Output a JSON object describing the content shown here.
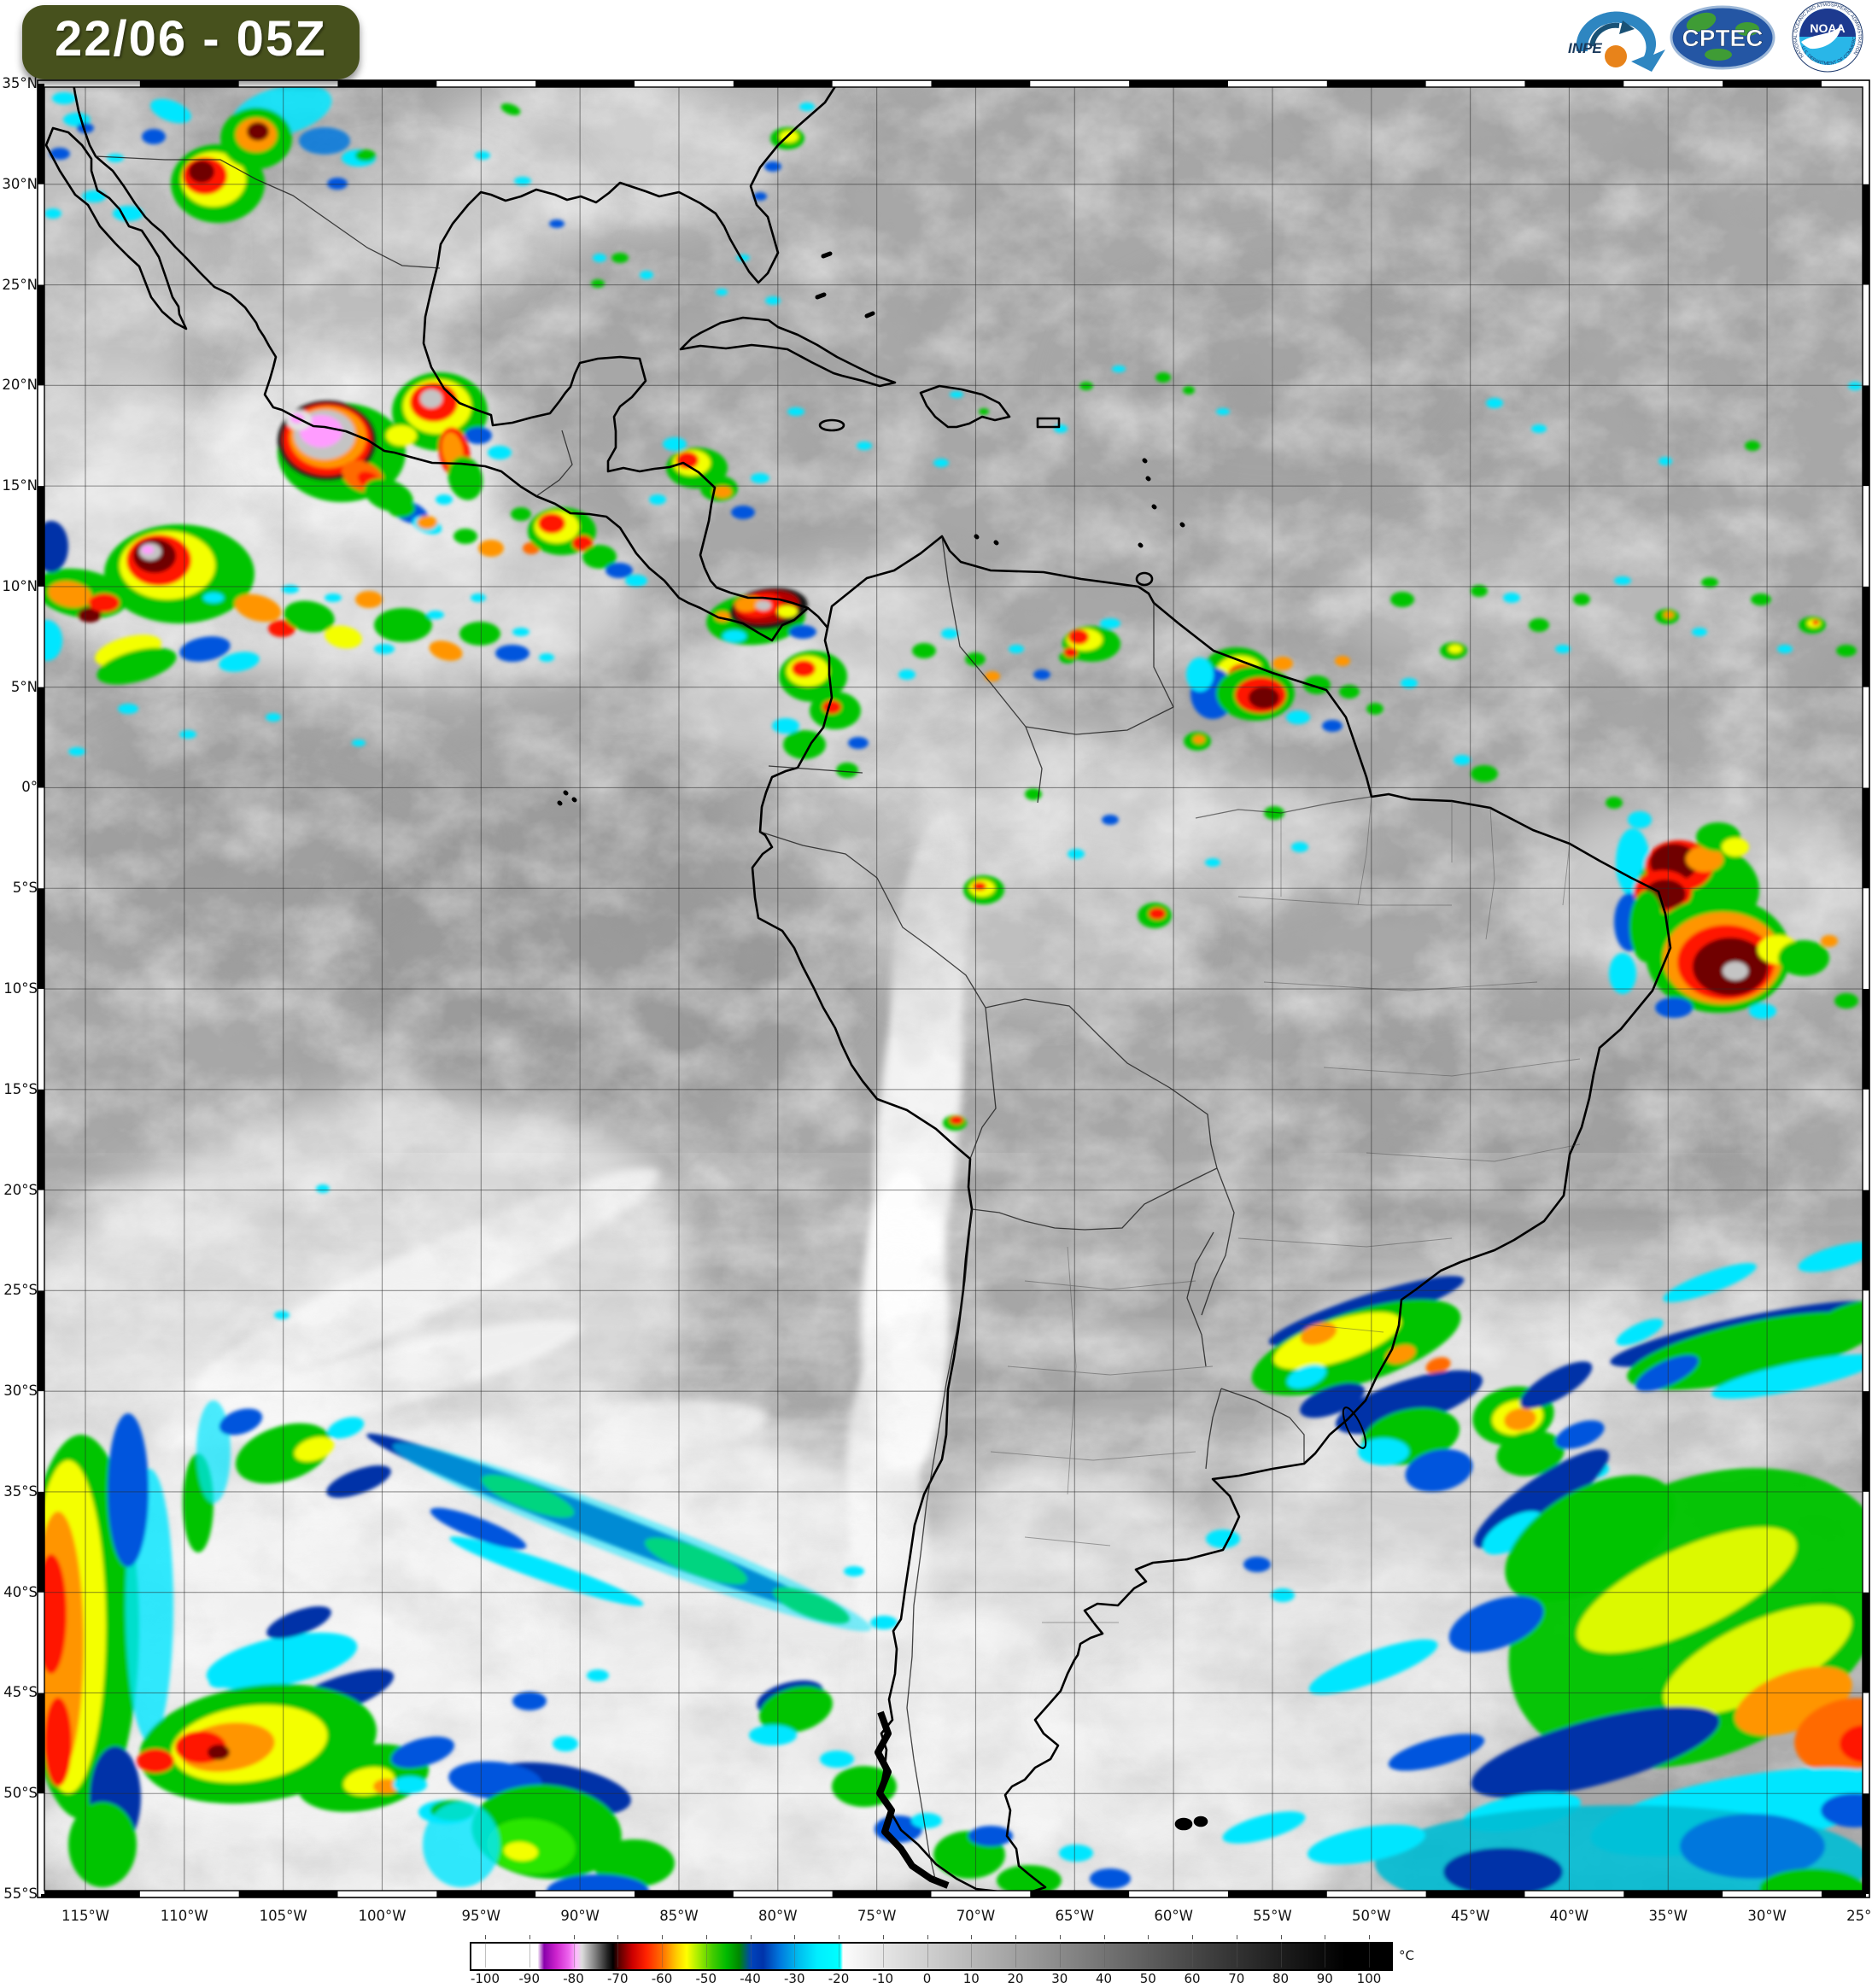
{
  "header": {
    "timestamp": "22/06 - 05Z"
  },
  "logos": {
    "inpe_label": "INPE",
    "cptec_label": "CPTEC",
    "noaa_label": "NOAA",
    "noaa_ring_top": "NATIONAL OCEANIC AND ATMOSPHERIC ADMINISTRATION",
    "noaa_ring_bottom": "U.S. DEPARTMENT OF COMMERCE"
  },
  "map": {
    "lat_labels": [
      "35°N",
      "30°N",
      "25°N",
      "20°N",
      "15°N",
      "10°N",
      "5°N",
      "0°",
      "5°S",
      "10°S",
      "15°S",
      "20°S",
      "25°S",
      "30°S",
      "35°S",
      "40°S",
      "45°S",
      "50°S",
      "55°S"
    ],
    "lon_labels": [
      "115°W",
      "110°W",
      "105°W",
      "100°W",
      "95°W",
      "90°W",
      "85°W",
      "80°W",
      "75°W",
      "70°W",
      "65°W",
      "60°W",
      "55°W",
      "50°W",
      "45°W",
      "40°W",
      "35°W",
      "30°W",
      "25°W"
    ]
  },
  "colorbar": {
    "unit": "°C",
    "tick_labels": [
      "-100",
      "-90",
      "-80",
      "-70",
      "-60",
      "-50",
      "-40",
      "-30",
      "-20",
      "-10",
      "0",
      "10",
      "20",
      "30",
      "40",
      "50",
      "60",
      "70",
      "80",
      "90",
      "100"
    ],
    "palette_segments": [
      {
        "from": -103,
        "to": -88,
        "color": "#ffffff"
      },
      {
        "from": -88,
        "to": -80,
        "color": "#cc22cc"
      },
      {
        "from": -80,
        "to": -71,
        "color": "#8a8a8a"
      },
      {
        "from": -71,
        "to": -62,
        "color": "#cc0000"
      },
      {
        "from": -62,
        "to": -54,
        "color": "#ffcc00"
      },
      {
        "from": -54,
        "to": -44,
        "color": "#22bb00"
      },
      {
        "from": -44,
        "to": -33,
        "color": "#0033aa"
      },
      {
        "from": -33,
        "to": -20,
        "color": "#00eeff"
      },
      {
        "from": -20,
        "to": 0,
        "color": "#e4e4e4"
      },
      {
        "from": 0,
        "to": 100,
        "color": "#000000"
      }
    ],
    "banner_color": "#47511d"
  }
}
